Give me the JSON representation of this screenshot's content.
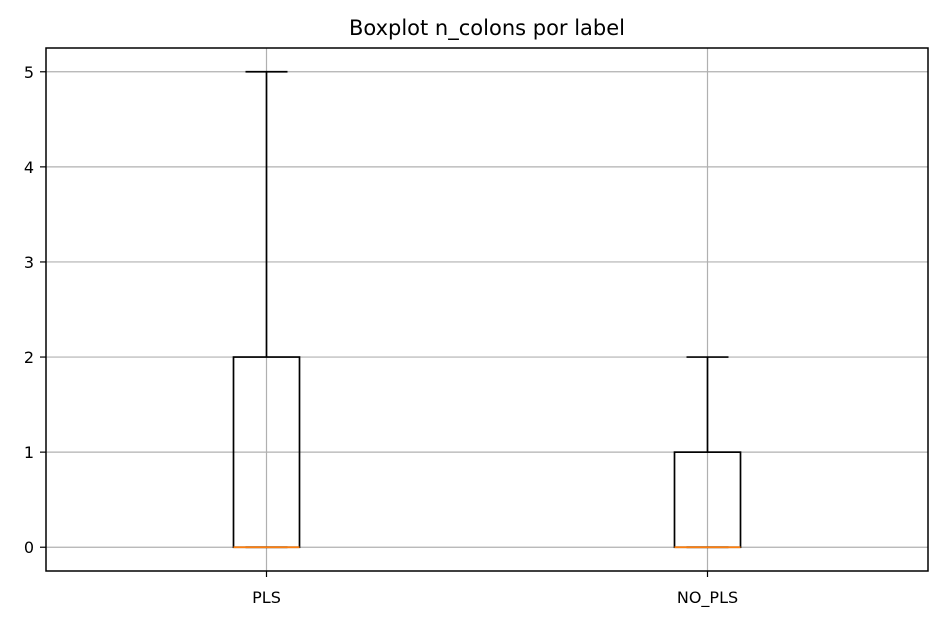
{
  "chart_data": {
    "type": "box",
    "title": "Boxplot n_colons por label",
    "xlabel": "",
    "ylabel": "",
    "categories": [
      "PLS",
      "NO_PLS"
    ],
    "boxes": [
      {
        "label": "PLS",
        "whisker_low": 0,
        "q1": 0,
        "median": 0,
        "q3": 2,
        "whisker_high": 5
      },
      {
        "label": "NO_PLS",
        "whisker_low": 0,
        "q1": 0,
        "median": 0,
        "q3": 1,
        "whisker_high": 2
      }
    ],
    "ylim": [
      -0.25,
      5.25
    ],
    "yticks": [
      0,
      1,
      2,
      3,
      4,
      5
    ],
    "grid": true,
    "colors": {
      "box": "#000000",
      "median": "#ff7f0e",
      "grid": "#b0b0b0"
    }
  }
}
